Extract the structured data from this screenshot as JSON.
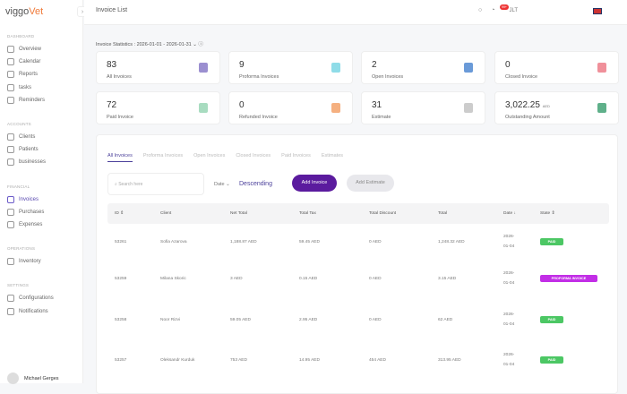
{
  "brand": {
    "logo_a": "viggo",
    "logo_b": "Vet"
  },
  "sidebar": {
    "sections": [
      {
        "title": "DASHBOARD",
        "items": [
          {
            "label": "Overview",
            "icon": "home-icon"
          },
          {
            "label": "Calendar",
            "icon": "calendar-icon"
          },
          {
            "label": "Reports",
            "icon": "chart-icon"
          },
          {
            "label": "tasks",
            "icon": "tasks-icon"
          },
          {
            "label": "Reminders",
            "icon": "reminder-icon"
          }
        ]
      },
      {
        "title": "ACCOUNTS",
        "items": [
          {
            "label": "Clients",
            "icon": "users-icon"
          },
          {
            "label": "Patients",
            "icon": "paw-icon"
          },
          {
            "label": "businesses",
            "icon": "building-icon"
          }
        ]
      },
      {
        "title": "FINANCIAL",
        "items": [
          {
            "label": "Invoices",
            "icon": "invoice-icon",
            "active": true
          },
          {
            "label": "Purchases",
            "icon": "dollar-icon"
          },
          {
            "label": "Expenses",
            "icon": "expense-icon"
          }
        ]
      },
      {
        "title": "OPERATIONS",
        "items": [
          {
            "label": "Inventory",
            "icon": "box-icon"
          }
        ]
      },
      {
        "title": "SETTINGS",
        "items": [
          {
            "label": "Configurations",
            "icon": "gear-icon"
          },
          {
            "label": "Notifications",
            "icon": "bell-icon"
          }
        ]
      }
    ],
    "user": "Michael Gerges"
  },
  "header": {
    "title": "Invoice List",
    "notif_badge": "99+",
    "org": "JLT",
    "language_icon": "uk-flag-icon"
  },
  "stats": {
    "label": "Invoice Statistics :",
    "range": "2026-01-01 - 2026-01-31",
    "cards": [
      {
        "value": "83",
        "label": "All Invoices",
        "color": "#9b8fd0"
      },
      {
        "value": "9",
        "label": "Proforma Invoices",
        "color": "#8fdce8"
      },
      {
        "value": "2",
        "label": "Open Invoices",
        "color": "#6a9ad8"
      },
      {
        "value": "0",
        "label": "Closed Invoice",
        "color": "#f0909a"
      },
      {
        "value": "72",
        "label": "Paid Invoice",
        "color": "#a8dcc0"
      },
      {
        "value": "0",
        "label": "Refunded Invoice",
        "color": "#f5b080"
      },
      {
        "value": "31",
        "label": "Estimate",
        "color": "#cccccc"
      },
      {
        "value": "3,022.25",
        "unit": "AED",
        "label": "Outstanding Amount",
        "color": "#5fb08a"
      }
    ]
  },
  "tabs": [
    "All Invoices",
    "Proforma Invoices",
    "Open Invoices",
    "Closed Invoices",
    "Paid Invoices",
    "Estimates"
  ],
  "search": {
    "placeholder": "Search here"
  },
  "sort": {
    "field": "Date",
    "direction": "Descending"
  },
  "buttons": {
    "add_invoice": "Add Invoice",
    "add_estimate": "Add Estimate"
  },
  "table": {
    "columns": [
      "ID ⇕",
      "Client",
      "Net Total",
      "Total Tax",
      "Total Discount",
      "Total",
      "Date ↓",
      "State ⇕"
    ],
    "rows": [
      {
        "id": "53261",
        "client": "Sofia Azarova",
        "net": "1,188.87 AED",
        "tax": "59.45 AED",
        "disc": "0 AED",
        "total": "1,248.32 AED",
        "date1": "2026-",
        "date2": "01-04",
        "state": "PAID",
        "color": "#4cc764"
      },
      {
        "id": "53259",
        "client": "Milana Skoric",
        "net": "3 AED",
        "tax": "0.15 AED",
        "disc": "0 AED",
        "total": "3.15 AED",
        "date1": "2026-",
        "date2": "01-04",
        "state": "PROFORMA INVOICE",
        "color": "#c22ee6"
      },
      {
        "id": "53258",
        "client": "Noor Rizvi",
        "net": "59.05 AED",
        "tax": "2.95 AED",
        "disc": "0 AED",
        "total": "62 AED",
        "date1": "2026-",
        "date2": "01-04",
        "state": "PAID",
        "color": "#4cc764"
      },
      {
        "id": "53257",
        "client": "Oleksandr Kurduk",
        "net": "753 AED",
        "tax": "14.95 AED",
        "disc": "454 AED",
        "total": "313.95 AED",
        "date1": "2026-",
        "date2": "01-04",
        "state": "PAID",
        "color": "#4cc764"
      }
    ]
  }
}
